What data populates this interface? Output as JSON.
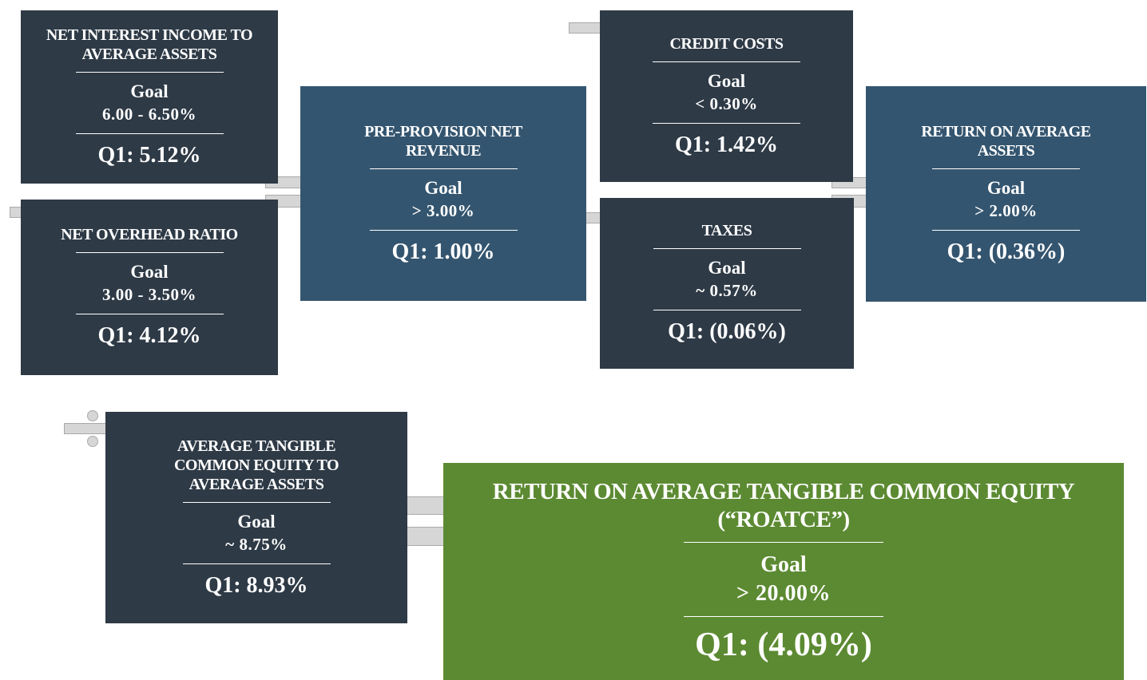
{
  "boxes": [
    {
      "title": "NET INTEREST INCOME TO AVERAGE ASSETS",
      "goal_label": "Goal",
      "goal": "6.00 - 6.50%",
      "result": "Q1: 5.12%"
    },
    {
      "title": "NET OVERHEAD RATIO",
      "goal_label": "Goal",
      "goal": "3.00 - 3.50%",
      "result": "Q1: 4.12%"
    },
    {
      "title": "PRE-PROVISION NET REVENUE",
      "goal_label": "Goal",
      "goal": "> 3.00%",
      "result": "Q1: 1.00%"
    },
    {
      "title": "CREDIT COSTS",
      "goal_label": "Goal",
      "goal": "< 0.30%",
      "result": "Q1: 1.42%"
    },
    {
      "title": "TAXES",
      "goal_label": "Goal",
      "goal": "~ 0.57%",
      "result": "Q1: (0.06%)"
    },
    {
      "title": "RETURN ON AVERAGE ASSETS",
      "goal_label": "Goal",
      "goal": "> 2.00%",
      "result": "Q1: (0.36%)"
    },
    {
      "title": "AVERAGE TANGIBLE COMMON EQUITY TO AVERAGE ASSETS",
      "goal_label": "Goal",
      "goal": "~ 8.75%",
      "result": "Q1: 8.93%"
    },
    {
      "title": "RETURN ON AVERAGE TANGIBLE COMMON EQUITY (“ROATCE”)",
      "goal_label": "Goal",
      "goal": "> 20.00%",
      "result": "Q1: (4.09%)"
    }
  ]
}
